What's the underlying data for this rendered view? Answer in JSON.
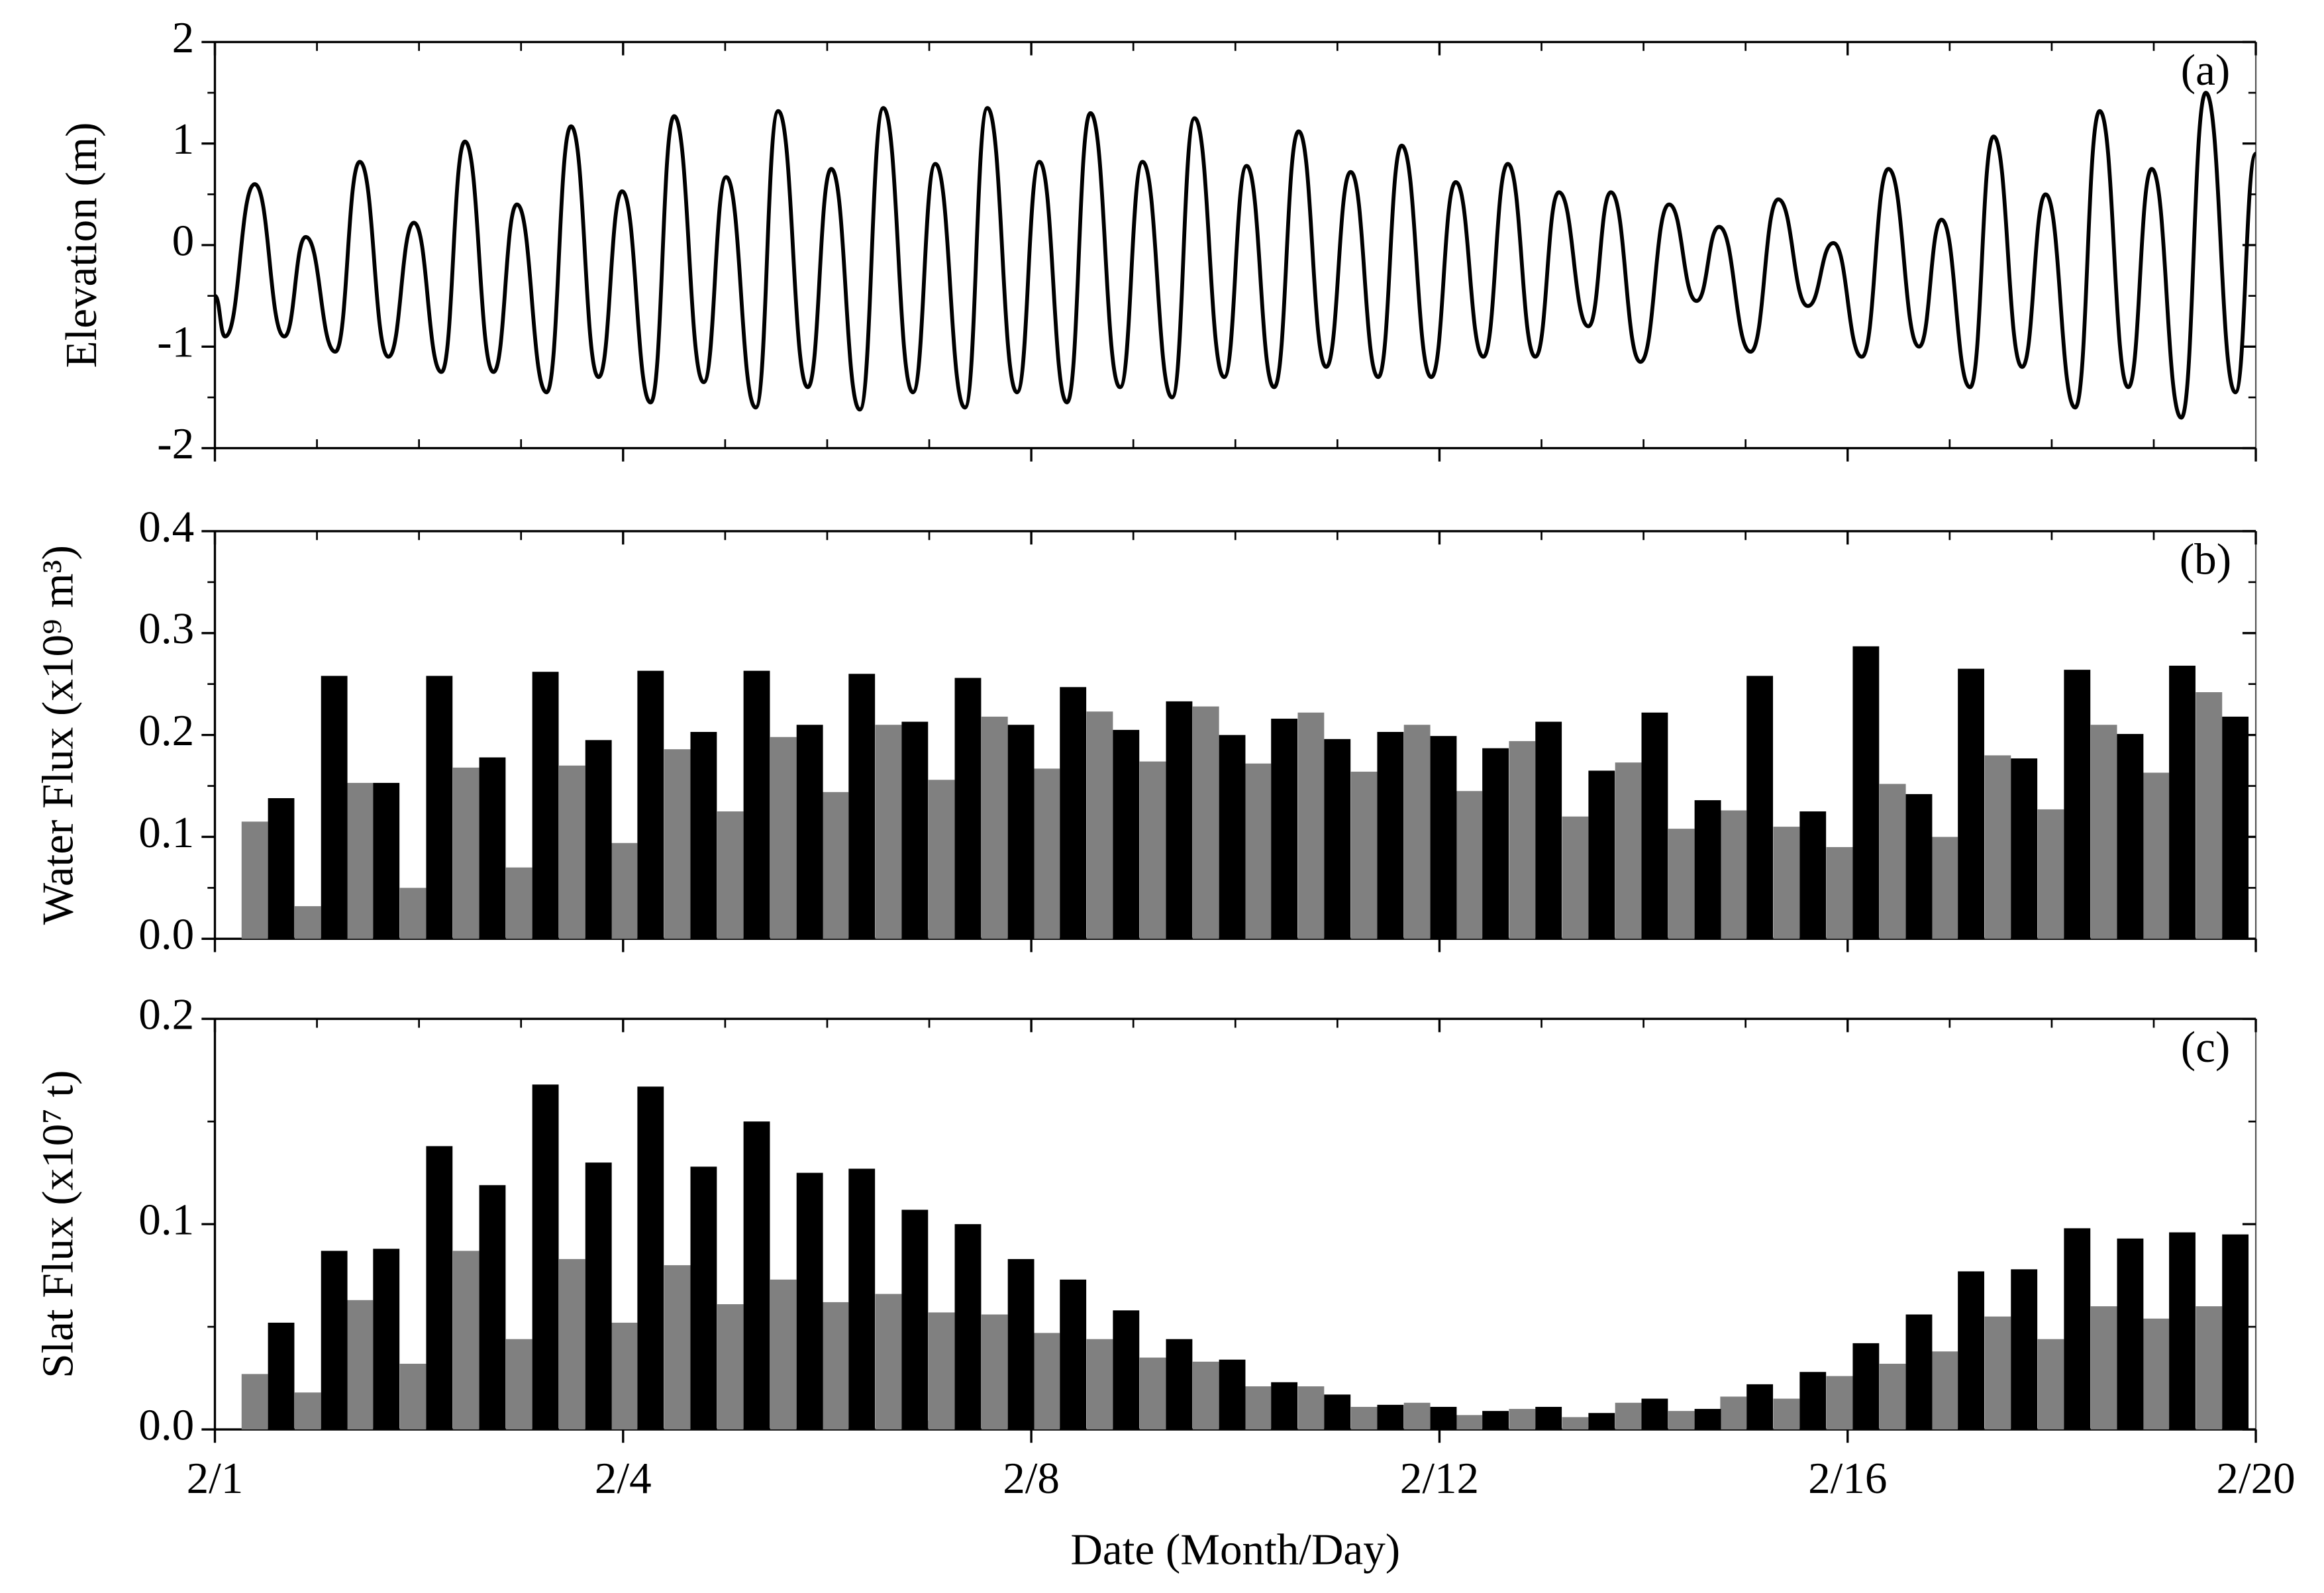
{
  "chart_data": [
    {
      "type": "line",
      "ylabel": "Elevation (m)",
      "annotation": "(a)",
      "color": "#000000",
      "xlim": [
        0,
        20
      ],
      "xticks": [
        0,
        4,
        8,
        12,
        16,
        20
      ],
      "xminorticks": [
        1,
        2,
        3,
        5,
        6,
        7,
        9,
        10,
        11,
        13,
        14,
        15,
        17,
        18,
        19
      ],
      "ylim": [
        -2,
        2
      ],
      "yticks": [
        -2,
        -1,
        0,
        1,
        2
      ],
      "yminorticks": [
        -1.5,
        -0.5,
        0.5,
        1.5
      ],
      "x": [
        0,
        0.1,
        0.39,
        0.68,
        0.89,
        1.18,
        1.42,
        1.7,
        1.95,
        2.22,
        2.45,
        2.73,
        2.96,
        3.25,
        3.49,
        3.76,
        3.99,
        4.27,
        4.5,
        4.79,
        5.01,
        5.3,
        5.52,
        5.81,
        6.04,
        6.32,
        6.55,
        6.84,
        7.06,
        7.35,
        7.57,
        7.86,
        8.08,
        8.35,
        8.58,
        8.87,
        9.09,
        9.38,
        9.6,
        9.89,
        10.11,
        10.38,
        10.62,
        10.89,
        11.13,
        11.4,
        11.63,
        11.92,
        12.16,
        12.43,
        12.67,
        12.94,
        13.17,
        13.46,
        13.68,
        13.97,
        14.25,
        14.52,
        14.74,
        15.05,
        15.32,
        15.61,
        15.86,
        16.14,
        16.4,
        16.7,
        16.92,
        17.2,
        17.43,
        17.71,
        17.94,
        18.23,
        18.47,
        18.75,
        18.98,
        19.27,
        19.51,
        19.8,
        20.0
      ],
      "values": [
        -0.5,
        -0.9,
        0.6,
        -0.9,
        0.08,
        -1.05,
        0.82,
        -1.1,
        0.22,
        -1.25,
        1.02,
        -1.25,
        0.4,
        -1.45,
        1.17,
        -1.3,
        0.53,
        -1.55,
        1.27,
        -1.35,
        0.67,
        -1.6,
        1.32,
        -1.4,
        0.75,
        -1.62,
        1.35,
        -1.45,
        0.8,
        -1.6,
        1.35,
        -1.45,
        0.82,
        -1.55,
        1.3,
        -1.4,
        0.82,
        -1.5,
        1.25,
        -1.3,
        0.78,
        -1.4,
        1.12,
        -1.2,
        0.72,
        -1.3,
        0.98,
        -1.3,
        0.62,
        -1.1,
        0.8,
        -1.1,
        0.52,
        -0.8,
        0.52,
        -1.15,
        0.4,
        -0.55,
        0.18,
        -1.05,
        0.45,
        -0.6,
        0.02,
        -1.1,
        0.75,
        -1.0,
        0.25,
        -1.4,
        1.07,
        -1.2,
        0.5,
        -1.6,
        1.32,
        -1.4,
        0.75,
        -1.7,
        1.5,
        -1.45,
        0.9
      ]
    },
    {
      "type": "bar",
      "ylabel": "Water Flux (x10⁹ m³)",
      "annotation": "(b)",
      "xlim": [
        0,
        20
      ],
      "xticks": [
        0,
        4,
        8,
        12,
        16,
        20
      ],
      "xminorticks": [
        1,
        2,
        3,
        5,
        6,
        7,
        9,
        10,
        11,
        13,
        14,
        15,
        17,
        18,
        19
      ],
      "ylim": [
        0,
        0.4
      ],
      "yticks": [
        {
          "value": 0,
          "label": "0.0"
        },
        0.1,
        0.2,
        0.3,
        0.4
      ],
      "yminorticks": [
        0.05,
        0.15,
        0.25,
        0.35
      ],
      "x": [
        0.52,
        1.04,
        1.55,
        2.07,
        2.59,
        3.11,
        3.63,
        4.14,
        4.66,
        5.18,
        5.7,
        6.21,
        6.73,
        7.25,
        7.77,
        8.28,
        8.8,
        9.32,
        9.84,
        10.35,
        10.87,
        11.39,
        11.91,
        12.42,
        12.94,
        13.46,
        13.98,
        14.5,
        15.01,
        15.53,
        16.05,
        16.57,
        17.08,
        17.6,
        18.12,
        18.64,
        19.15,
        19.67
      ],
      "series": [
        {
          "color": "#808080",
          "values": [
            0.115,
            0.032,
            0.153,
            0.05,
            0.168,
            0.07,
            0.17,
            0.094,
            0.186,
            0.125,
            0.198,
            0.144,
            0.21,
            0.156,
            0.218,
            0.167,
            0.223,
            0.174,
            0.228,
            0.172,
            0.222,
            0.164,
            0.21,
            0.145,
            0.194,
            0.12,
            0.173,
            0.108,
            0.126,
            0.11,
            0.09,
            0.152,
            0.1,
            0.18,
            0.127,
            0.21,
            0.163,
            0.242
          ]
        },
        {
          "color": "#000000",
          "values": [
            0.138,
            0.258,
            0.153,
            0.258,
            0.178,
            0.262,
            0.195,
            0.263,
            0.203,
            0.263,
            0.21,
            0.26,
            0.213,
            0.256,
            0.21,
            0.247,
            0.205,
            0.233,
            0.2,
            0.216,
            0.196,
            0.203,
            0.199,
            0.187,
            0.213,
            0.165,
            0.222,
            0.136,
            0.258,
            0.125,
            0.287,
            0.142,
            0.265,
            0.177,
            0.264,
            0.201,
            0.268,
            0.218
          ]
        }
      ]
    },
    {
      "type": "bar",
      "ylabel": "Slat Flux (x10⁷ t)",
      "annotation": "(c)",
      "xlabel": "Date (Month/Day)",
      "xlim": [
        0,
        20
      ],
      "xticks": [
        {
          "value": 0,
          "label": "2/1"
        },
        {
          "value": 4,
          "label": "2/4"
        },
        {
          "value": 8,
          "label": "2/8"
        },
        {
          "value": 12,
          "label": "2/12"
        },
        {
          "value": 16,
          "label": "2/16"
        },
        {
          "value": 20,
          "label": "2/20"
        }
      ],
      "xminorticks": [
        1,
        2,
        3,
        5,
        6,
        7,
        9,
        10,
        11,
        13,
        14,
        15,
        17,
        18,
        19
      ],
      "ylim": [
        0,
        0.2
      ],
      "yticks": [
        {
          "value": 0,
          "label": "0.0"
        },
        0.1,
        0.2
      ],
      "yminorticks": [
        0.05,
        0.15
      ],
      "x": [
        0.52,
        1.04,
        1.55,
        2.07,
        2.59,
        3.11,
        3.63,
        4.14,
        4.66,
        5.18,
        5.7,
        6.21,
        6.73,
        7.25,
        7.77,
        8.28,
        8.8,
        9.32,
        9.84,
        10.35,
        10.87,
        11.39,
        11.91,
        12.42,
        12.94,
        13.46,
        13.98,
        14.5,
        15.01,
        15.53,
        16.05,
        16.57,
        17.08,
        17.6,
        18.12,
        18.64,
        19.15,
        19.67
      ],
      "series": [
        {
          "color": "#808080",
          "values": [
            0.027,
            0.018,
            0.063,
            0.032,
            0.087,
            0.044,
            0.083,
            0.052,
            0.08,
            0.061,
            0.073,
            0.062,
            0.066,
            0.057,
            0.056,
            0.047,
            0.044,
            0.035,
            0.033,
            0.021,
            0.021,
            0.011,
            0.013,
            0.007,
            0.01,
            0.006,
            0.013,
            0.009,
            0.016,
            0.015,
            0.026,
            0.032,
            0.038,
            0.055,
            0.044,
            0.06,
            0.054,
            0.06
          ]
        },
        {
          "color": "#000000",
          "values": [
            0.052,
            0.087,
            0.088,
            0.138,
            0.119,
            0.168,
            0.13,
            0.167,
            0.128,
            0.15,
            0.125,
            0.127,
            0.107,
            0.1,
            0.083,
            0.073,
            0.058,
            0.044,
            0.034,
            0.023,
            0.017,
            0.012,
            0.011,
            0.009,
            0.011,
            0.008,
            0.015,
            0.01,
            0.022,
            0.028,
            0.042,
            0.056,
            0.077,
            0.078,
            0.098,
            0.093,
            0.096,
            0.095
          ]
        }
      ]
    }
  ]
}
